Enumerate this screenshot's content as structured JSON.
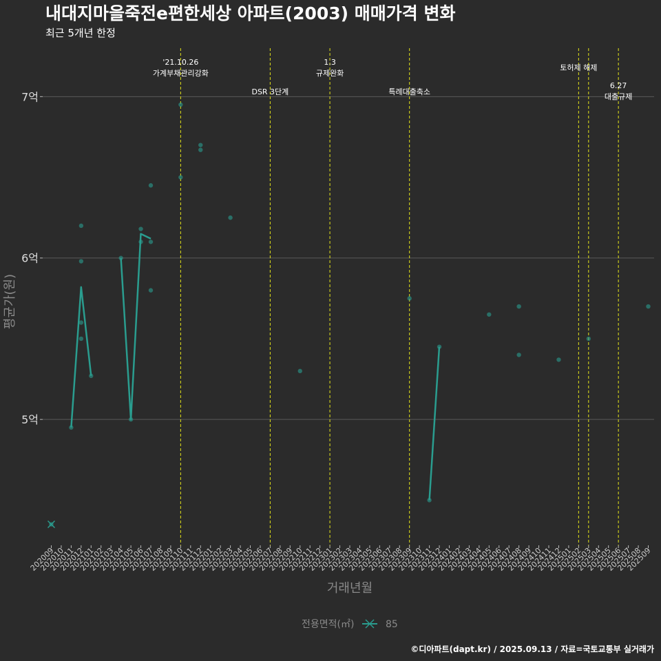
{
  "colors": {
    "background": "#2b2b2b",
    "grid": "#5a5a5a",
    "series": "#2a9d8f",
    "event_line": "#e6e619"
  },
  "chart_data": {
    "type": "line",
    "title": "내대지마을죽전e편한세상 아파트(2003) 매매가격 변화",
    "subtitle": "최근 5개년 한정",
    "xlabel": "거래년월",
    "ylabel": "평균가(원)",
    "caption": "©디아파트(dapt.kr) / 2025.09.13 / 자료=국토교통부 실거래가",
    "legend": {
      "title": "전용면적(㎡)",
      "label": "85"
    },
    "ylim": [
      4.22,
      7.3
    ],
    "y_ticks": [
      {
        "value": 5,
        "label": "5억"
      },
      {
        "value": 6,
        "label": "6억"
      },
      {
        "value": 7,
        "label": "7억"
      }
    ],
    "x_categories": [
      "202009",
      "202010",
      "202011",
      "202012",
      "202101",
      "202102",
      "202103",
      "202104",
      "202105",
      "202106",
      "202107",
      "202108",
      "202109",
      "202110",
      "202111",
      "202112",
      "202201",
      "202202",
      "202203",
      "202204",
      "202205",
      "202206",
      "202207",
      "202208",
      "202209",
      "202210",
      "202211",
      "202212",
      "202301",
      "202302",
      "202303",
      "202304",
      "202305",
      "202306",
      "202307",
      "202308",
      "202309",
      "202310",
      "202311",
      "202312",
      "202401",
      "202402",
      "202403",
      "202404",
      "202405",
      "202406",
      "202407",
      "202408",
      "202409",
      "202410",
      "202411",
      "202412",
      "202501",
      "202502",
      "202503",
      "202504",
      "202505",
      "202506",
      "202507",
      "202508",
      "202509"
    ],
    "points": [
      {
        "x": "202009",
        "y": 4.35
      },
      {
        "x": "202011",
        "y": 4.95
      },
      {
        "x": "202012",
        "y": 6.2
      },
      {
        "x": "202012",
        "y": 5.98
      },
      {
        "x": "202012",
        "y": 5.6
      },
      {
        "x": "202012",
        "y": 5.5
      },
      {
        "x": "202101",
        "y": 5.27
      },
      {
        "x": "202104",
        "y": 6.0
      },
      {
        "x": "202105",
        "y": 5.0
      },
      {
        "x": "202106",
        "y": 6.18
      },
      {
        "x": "202106",
        "y": 6.1
      },
      {
        "x": "202107",
        "y": 6.45
      },
      {
        "x": "202107",
        "y": 6.1
      },
      {
        "x": "202107",
        "y": 5.8
      },
      {
        "x": "202110",
        "y": 6.95
      },
      {
        "x": "202110",
        "y": 6.5
      },
      {
        "x": "202112",
        "y": 6.7
      },
      {
        "x": "202112",
        "y": 6.67
      },
      {
        "x": "202203",
        "y": 6.25
      },
      {
        "x": "202210",
        "y": 5.3
      },
      {
        "x": "202309",
        "y": 5.75
      },
      {
        "x": "202311",
        "y": 4.5
      },
      {
        "x": "202312",
        "y": 5.45
      },
      {
        "x": "202405",
        "y": 5.65
      },
      {
        "x": "202408",
        "y": 5.7
      },
      {
        "x": "202408",
        "y": 5.4
      },
      {
        "x": "202412",
        "y": 5.37
      },
      {
        "x": "202503",
        "y": 5.5
      },
      {
        "x": "202509",
        "y": 5.7
      }
    ],
    "line_segments": [
      [
        {
          "x": "202011",
          "y": 4.95
        },
        {
          "x": "202012",
          "y": 5.82
        },
        {
          "x": "202101",
          "y": 5.27
        }
      ],
      [
        {
          "x": "202104",
          "y": 6.0
        },
        {
          "x": "202105",
          "y": 5.0
        },
        {
          "x": "202106",
          "y": 6.15
        },
        {
          "x": "202107",
          "y": 6.12
        }
      ],
      [
        {
          "x": "202311",
          "y": 4.5
        },
        {
          "x": "202312",
          "y": 5.45
        }
      ]
    ],
    "events": [
      {
        "x": 13.0,
        "lines": [
          "'21.10.26",
          "가계부채관리강화"
        ],
        "row": 1
      },
      {
        "x": 22.0,
        "lines": [
          "DSR 3단계"
        ],
        "row": 3
      },
      {
        "x": 28.0,
        "lines": [
          "1.3",
          "규제완화"
        ],
        "row": 1
      },
      {
        "x": 36.0,
        "lines": [
          "특례대출축소"
        ],
        "row": 3
      },
      {
        "x": 53.0,
        "lines": [
          "토허제 해제"
        ],
        "row": 2
      },
      {
        "x": 54.0,
        "lines": [],
        "row": 0
      },
      {
        "x": 57.0,
        "lines": [
          "6.27",
          "대출규제"
        ],
        "row": 4
      }
    ]
  }
}
